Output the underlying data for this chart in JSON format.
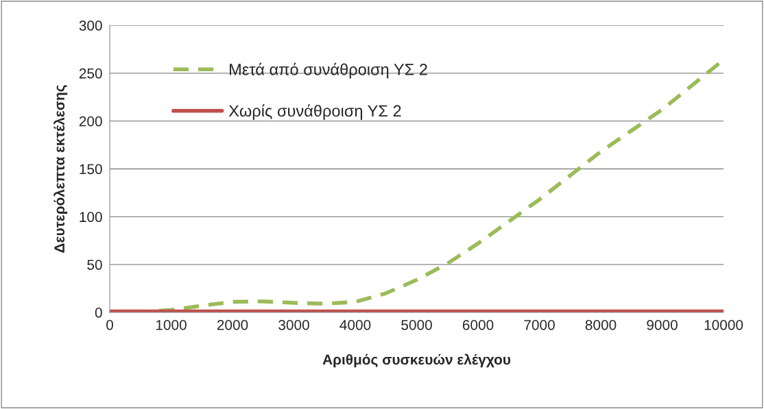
{
  "chart_data": {
    "type": "line",
    "xlabel": "Αριθμός συσκευών ελέγχου",
    "ylabel": "Δευτερόλεπτα εκτέλεσης",
    "series": [
      {
        "name": "Μετά από συνάθροιση ΥΣ 2",
        "color": "#9bbb59",
        "line_style": "dashed",
        "x": [
          0,
          500,
          1000,
          1500,
          2000,
          2500,
          3000,
          3500,
          4000,
          4500,
          5000,
          5500,
          6000,
          6500,
          7000,
          7500,
          8000,
          8500,
          9000,
          9500,
          10000
        ],
        "values": [
          0,
          0.5,
          2.5,
          7,
          11,
          11.5,
          10,
          9,
          11,
          20,
          34,
          51,
          72,
          95,
          118,
          143,
          168,
          190,
          212,
          238,
          264
        ]
      },
      {
        "name": "Χωρίς συνάθροιση ΥΣ 2",
        "color": "#c0504d",
        "line_style": "solid",
        "x": [
          0,
          1000,
          2000,
          3000,
          4000,
          5000,
          6000,
          7000,
          8000,
          9000,
          10000
        ],
        "values": [
          1,
          1,
          1,
          1,
          1,
          1,
          1,
          1,
          1,
          1,
          1
        ]
      }
    ],
    "xlim": [
      0,
      10000
    ],
    "xticks": [
      0,
      1000,
      2000,
      3000,
      4000,
      5000,
      6000,
      7000,
      8000,
      9000,
      10000
    ],
    "ylim": [
      0,
      300
    ],
    "yticks": [
      0,
      50,
      100,
      150,
      200,
      250,
      300
    ],
    "grid": "y",
    "legend": "top left",
    "marker": "none"
  }
}
